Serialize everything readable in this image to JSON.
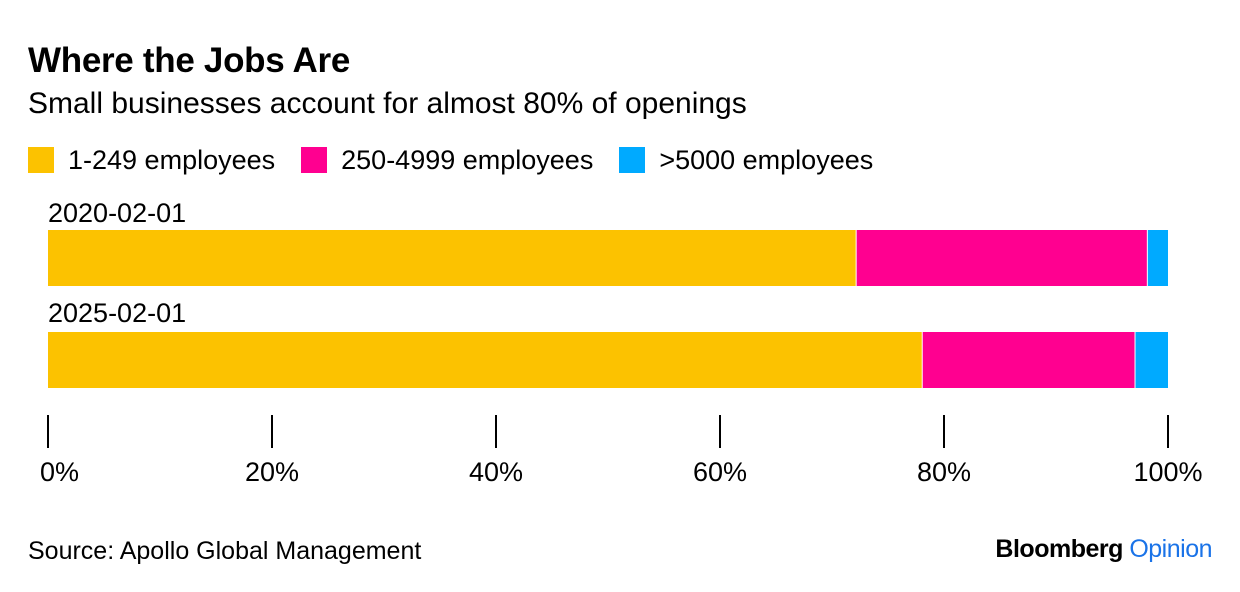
{
  "title": "Where the Jobs Are",
  "subtitle": "Small businesses account for almost 80% of openings",
  "legend": [
    {
      "label": "1-249 employees",
      "color": "#fcc200"
    },
    {
      "label": "250-4999 employees",
      "color": "#ff0090"
    },
    {
      "label": ">5000 employees",
      "color": "#00aaff"
    }
  ],
  "source": "Source: Apollo Global Management",
  "brand": {
    "name": "Bloomberg",
    "section": "Opinion"
  },
  "chart_data": {
    "type": "bar",
    "orientation": "horizontal",
    "stacked": true,
    "categories": [
      "2020-02-01",
      "2025-02-01"
    ],
    "series": [
      {
        "name": "1-249 employees",
        "color": "#fcc200",
        "values": [
          72.2,
          78.1
        ]
      },
      {
        "name": "250-4999 employees",
        "color": "#ff0090",
        "values": [
          26.0,
          19.0
        ]
      },
      {
        "name": ">5000 employees",
        "color": "#00aaff",
        "values": [
          1.8,
          2.9
        ]
      }
    ],
    "xlim": [
      0,
      100
    ],
    "xticks": [
      0,
      20,
      40,
      60,
      80,
      100
    ],
    "xtick_labels": [
      "0%",
      "20%",
      "40%",
      "60%",
      "80%",
      "100%"
    ],
    "grid": false,
    "legend_position": "top-left"
  }
}
